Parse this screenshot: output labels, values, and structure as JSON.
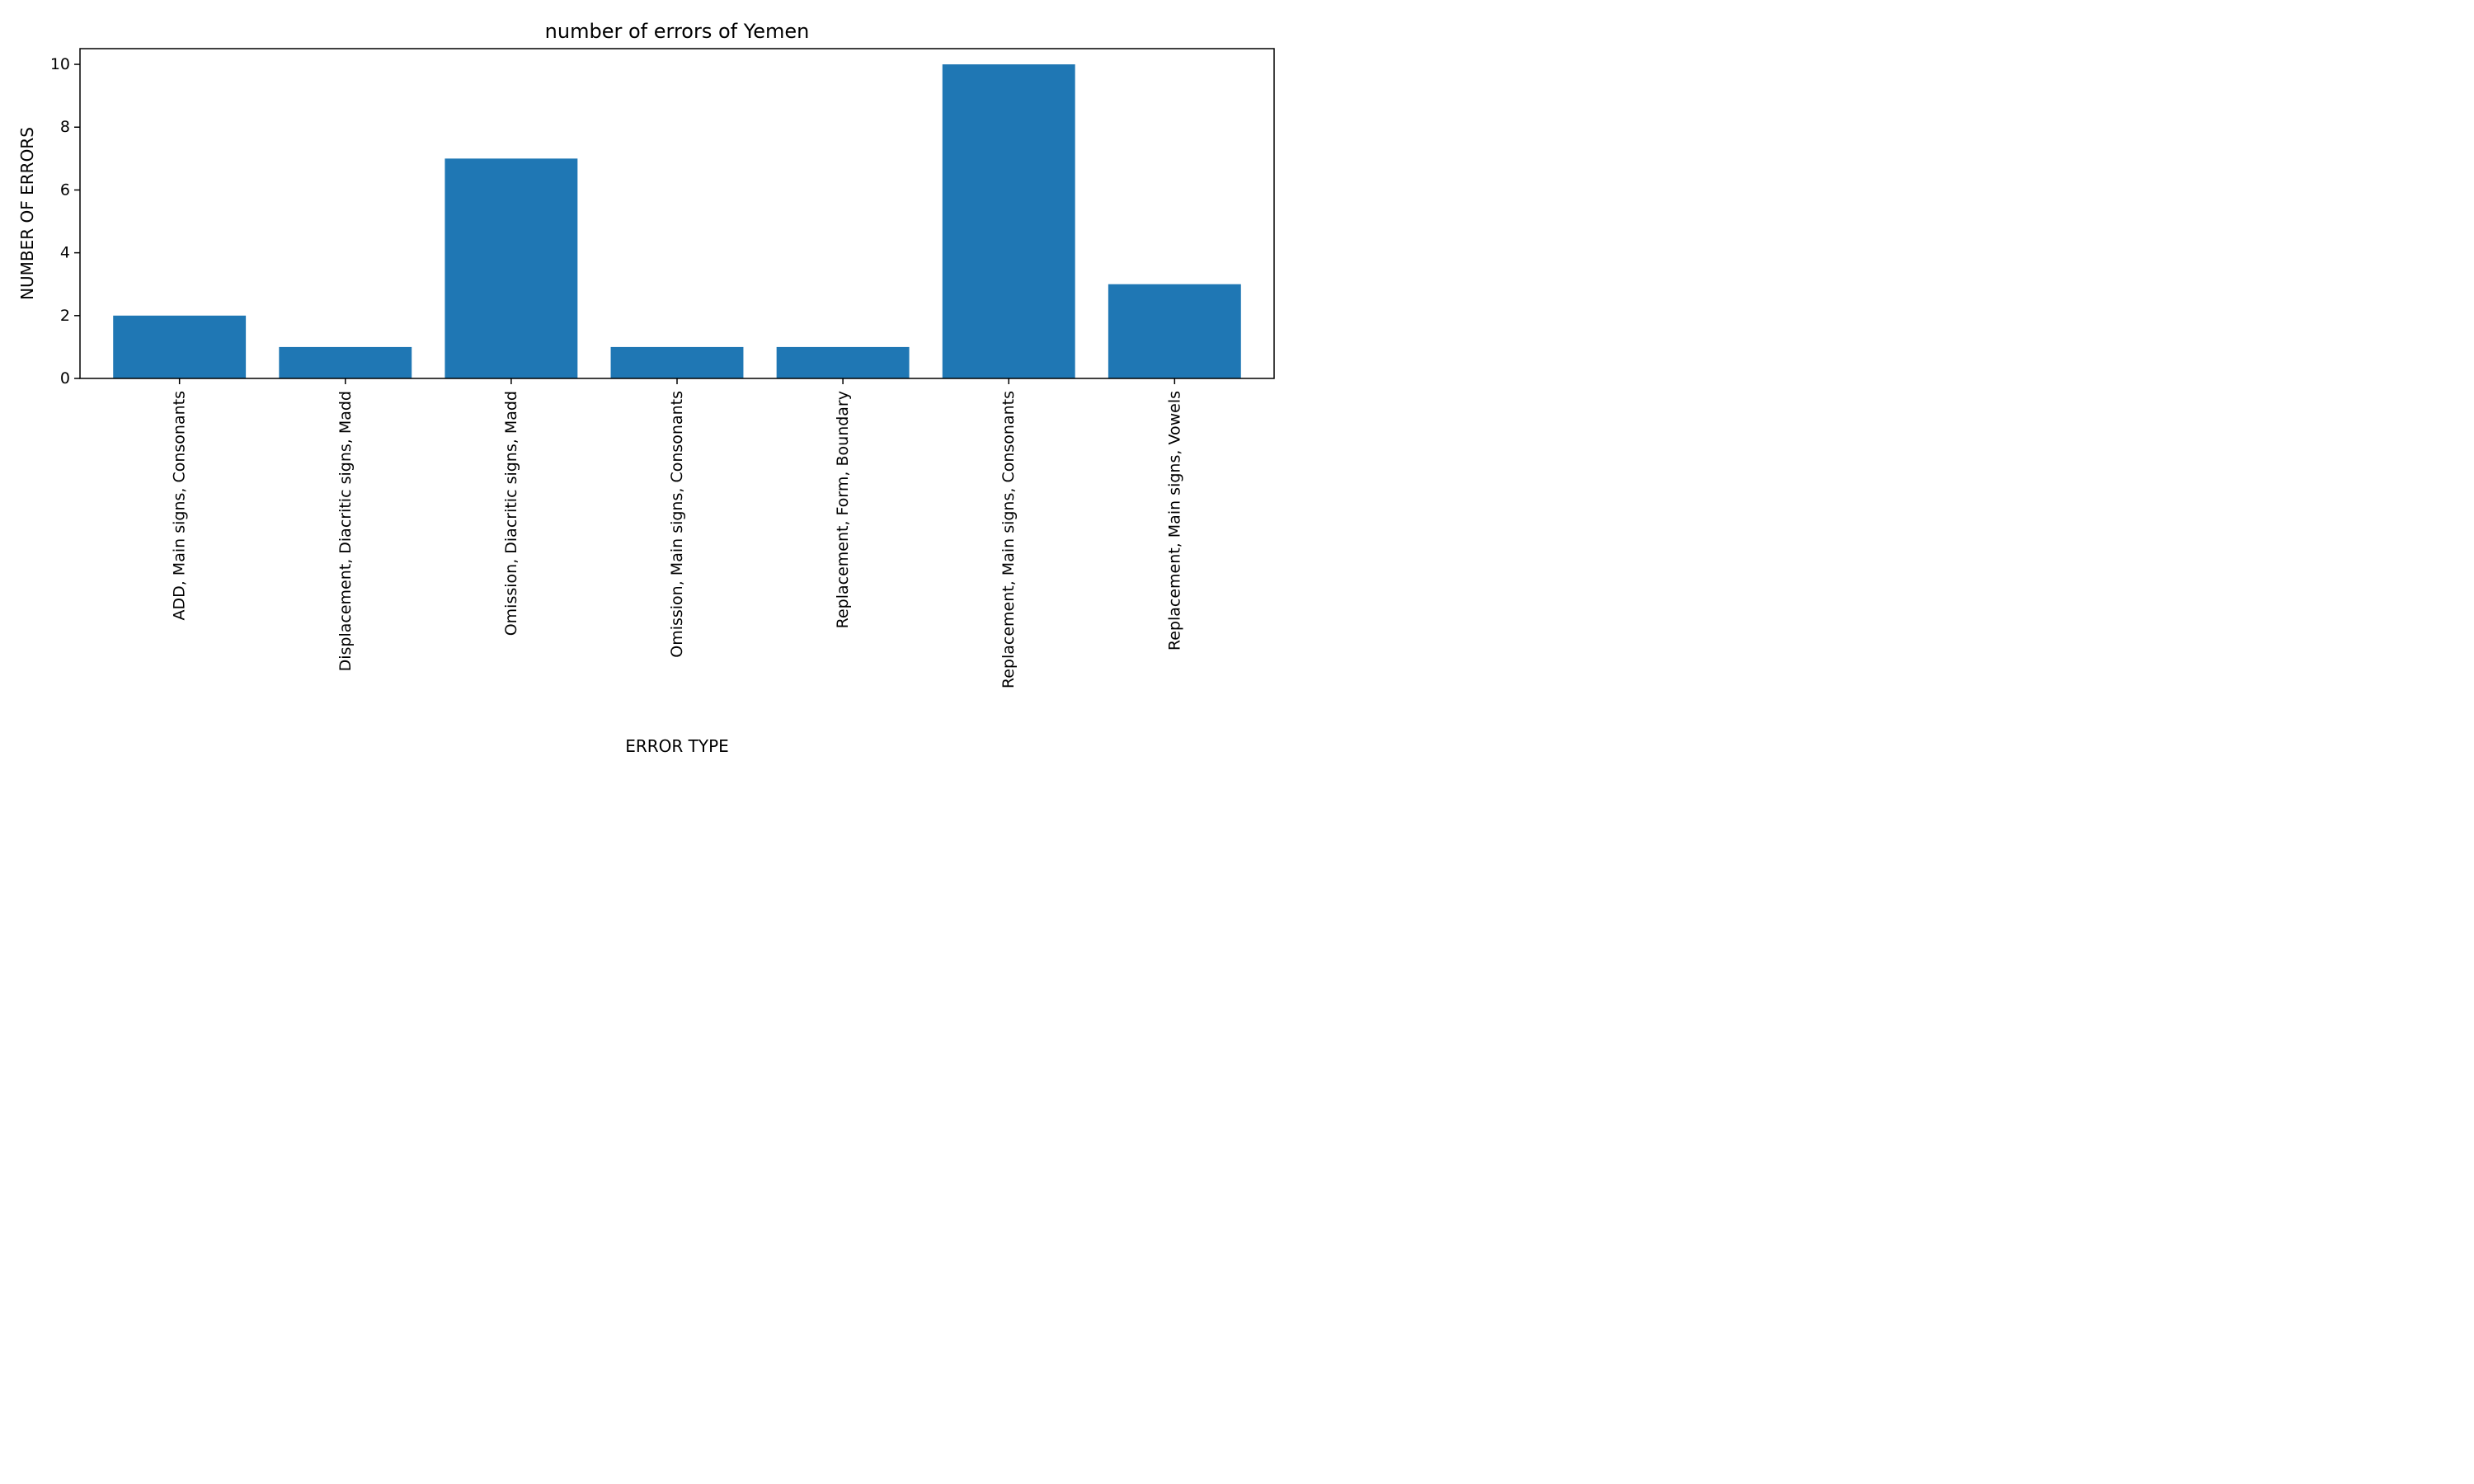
{
  "chart_data": {
    "type": "bar",
    "title": "number of errors of Yemen",
    "xlabel": "ERROR TYPE",
    "ylabel": "NUMBER OF ERRORS",
    "categories": [
      "ADD, Main signs, Consonants",
      "Displacement, Diacritic signs, Madd",
      "Omission, Diacritic signs, Madd",
      "Omission, Main signs, Consonants",
      "Replacement, Form, Boundary",
      "Replacement, Main signs, Consonants",
      "Replacement, Main signs, Vowels"
    ],
    "values": [
      2,
      1,
      7,
      1,
      1,
      10,
      3
    ],
    "ylim": [
      0,
      10.5
    ],
    "yticks": [
      0,
      2,
      4,
      6,
      8,
      10
    ],
    "bar_color": "#1f77b4",
    "grid": false,
    "legend": "none"
  }
}
